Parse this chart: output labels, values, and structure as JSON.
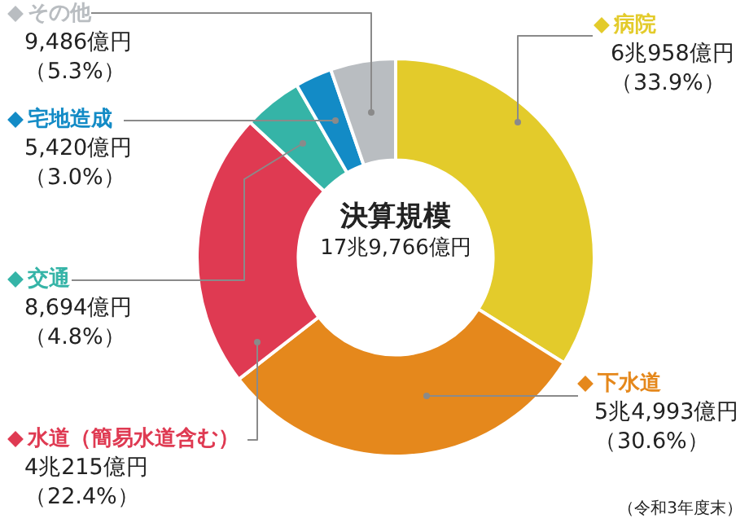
{
  "chart_data": {
    "type": "donut",
    "title": "決算規模",
    "subtitle": "17兆9,766億円",
    "categories": [
      "病院",
      "下水道",
      "水道（簡易水道含む）",
      "交通",
      "宅地造成",
      "その他"
    ],
    "values": [
      33.9,
      30.6,
      22.4,
      4.8,
      3.0,
      5.3
    ],
    "colors": [
      "#e3cb2b",
      "#e5881c",
      "#df3a52",
      "#35b4a7",
      "#138bc6",
      "#b9bdc1"
    ],
    "value_labels": [
      "6兆958億円（33.9%）",
      "5兆4,993億円（30.6%）",
      "4兆215億円（22.4%）",
      "8,694億円（4.8%）",
      "5,420億円（3.0%）",
      "9,486億円（5.3%）"
    ],
    "annotations": [
      "（令和3年度末）"
    ],
    "legend": "left"
  }
}
